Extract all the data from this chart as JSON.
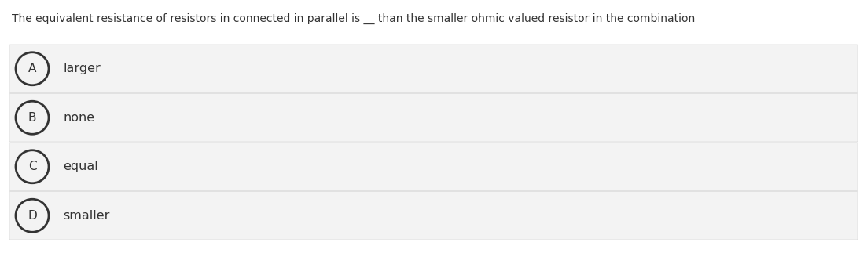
{
  "question": "The equivalent resistance of resistors in connected in parallel is __ than the smaller ohmic valued resistor in the combination",
  "options": [
    {
      "label": "A",
      "text": "larger"
    },
    {
      "label": "B",
      "text": "none"
    },
    {
      "label": "C",
      "text": "equal"
    },
    {
      "label": "D",
      "text": "smaller"
    }
  ],
  "bg_color": "#ffffff",
  "option_bg_color": "#f3f3f3",
  "option_border_color": "#d8d8d8",
  "text_color": "#333333",
  "circle_edge_color": "#333333",
  "question_fontsize": 10.0,
  "option_fontsize": 11.5,
  "label_fontsize": 11.0,
  "fig_width": 11.03,
  "fig_height": 3.23,
  "dpi": 100
}
